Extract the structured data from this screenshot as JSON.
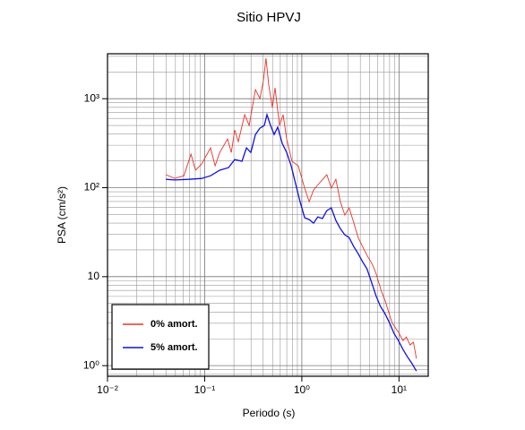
{
  "chart_data": {
    "type": "line",
    "title": "Sitio HPVJ",
    "xlabel": "Periodo (s)",
    "ylabel": "PSA (cm/s²)",
    "log_x": true,
    "log_y": true,
    "grid": true,
    "legend": "lower left",
    "xlim": [
      0.01,
      20
    ],
    "ylim": [
      0.76,
      3200
    ],
    "xticks": [
      {
        "value": 0.01,
        "label": "10⁻²"
      },
      {
        "value": 0.1,
        "label": "10⁻¹"
      },
      {
        "value": 1,
        "label": "10⁰"
      },
      {
        "value": 10,
        "label": "10¹"
      }
    ],
    "yticks": [
      {
        "value": 1,
        "label": "10⁰"
      },
      10,
      {
        "value": 100,
        "label": "10²"
      },
      {
        "value": 1000,
        "label": "10³"
      }
    ],
    "series": [
      {
        "name": "0% amort.",
        "color": "#e8332a",
        "x": [
          0.04,
          0.049,
          0.061,
          0.0723,
          0.0804,
          0.093,
          0.115,
          0.128,
          0.143,
          0.172,
          0.188,
          0.204,
          0.222,
          0.258,
          0.287,
          0.333,
          0.37,
          0.402,
          0.428,
          0.457,
          0.497,
          0.53,
          0.589,
          0.641,
          0.698,
          0.792,
          0.919,
          1.07,
          1.19,
          1.32,
          1.5,
          1.7,
          1.81,
          2.01,
          2.24,
          2.49,
          2.77,
          3.07,
          3.35,
          3.8,
          4.22,
          4.69,
          5.33,
          5.8,
          6.59,
          7.17,
          8.49,
          10.0,
          11.0,
          11.9,
          13.0,
          14.1,
          15.1
        ],
        "values": [
          140,
          127,
          136,
          238,
          157,
          184,
          280,
          176,
          249,
          353,
          249,
          445,
          329,
          661,
          500,
          1264,
          1002,
          1594,
          2845,
          1419,
          795,
          1324,
          500,
          661,
          353,
          198,
          176,
          98.6,
          69.7,
          94.2,
          111,
          130,
          140,
          98.6,
          124,
          69.7,
          49.2,
          59.2,
          43.8,
          27.5,
          21.8,
          17.3,
          13.7,
          10.9,
          6.85,
          5.43,
          3.04,
          2.31,
          1.91,
          2.1,
          1.71,
          1.83,
          1.2
        ]
      },
      {
        "name": "5% amort.",
        "color": "#1010e0",
        "x": [
          0.04,
          0.049,
          0.068,
          0.093,
          0.115,
          0.143,
          0.176,
          0.204,
          0.242,
          0.269,
          0.299,
          0.333,
          0.37,
          0.411,
          0.438,
          0.477,
          0.519,
          0.565,
          0.628,
          0.698,
          0.776,
          0.862,
          0.958,
          1.07,
          1.19,
          1.32,
          1.46,
          1.63,
          1.81,
          2.01,
          2.24,
          2.49,
          2.77,
          3.07,
          3.42,
          3.8,
          4.22,
          4.69,
          5.22,
          5.8,
          6.45,
          7.17,
          7.97,
          8.86,
          9.86,
          11.0,
          12.2,
          13.5,
          15.1
        ],
        "values": [
          124,
          122,
          124,
          127,
          136,
          157,
          168,
          207,
          198,
          280,
          249,
          396,
          466,
          500,
          661,
          500,
          396,
          478,
          315,
          249,
          176,
          111,
          69.7,
          45.9,
          43.8,
          39.9,
          47.0,
          44.9,
          55.3,
          59.2,
          42.8,
          34.7,
          29.5,
          27.5,
          21.8,
          18.1,
          14.7,
          12.2,
          8.65,
          6.1,
          4.62,
          3.84,
          3.04,
          2.31,
          1.91,
          1.52,
          1.26,
          1.07,
          0.87
        ]
      }
    ]
  }
}
